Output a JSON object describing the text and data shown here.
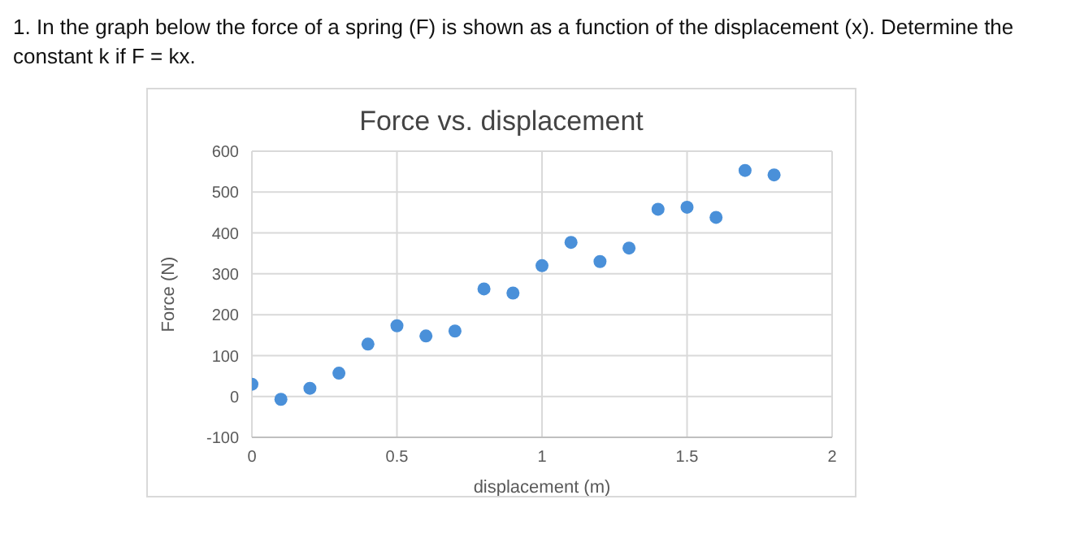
{
  "chart_data": {
    "type": "scatter",
    "title": "Force vs. displacement",
    "xlabel": "displacement (m)",
    "ylabel": "Force (N)",
    "annotations": [
      "1. In the graph below the force of a spring (F) is shown as a function of the displacement (x). Determine the constant k if F = kx."
    ],
    "x": [
      0,
      0.1,
      0.2,
      0.3,
      0.4,
      0.5,
      0.6,
      0.7,
      0.8,
      0.9,
      1.0,
      1.1,
      1.2,
      1.3,
      1.4,
      1.5,
      1.6,
      1.7,
      1.8
    ],
    "series": [
      {
        "color": "#4a90d9",
        "values": [
          30,
          -7,
          20,
          57,
          128,
          173,
          148,
          160,
          263,
          253,
          320,
          377,
          330,
          363,
          458,
          463,
          438,
          553,
          542
        ]
      }
    ],
    "xlim": [
      0,
      2
    ],
    "xticks": [
      0,
      0.5,
      1,
      1.5,
      2
    ],
    "ylim": [
      -100,
      600
    ],
    "yticks": [
      -100,
      0,
      100,
      200,
      300,
      400,
      500,
      600
    ],
    "grid": true,
    "marker": "circle"
  }
}
